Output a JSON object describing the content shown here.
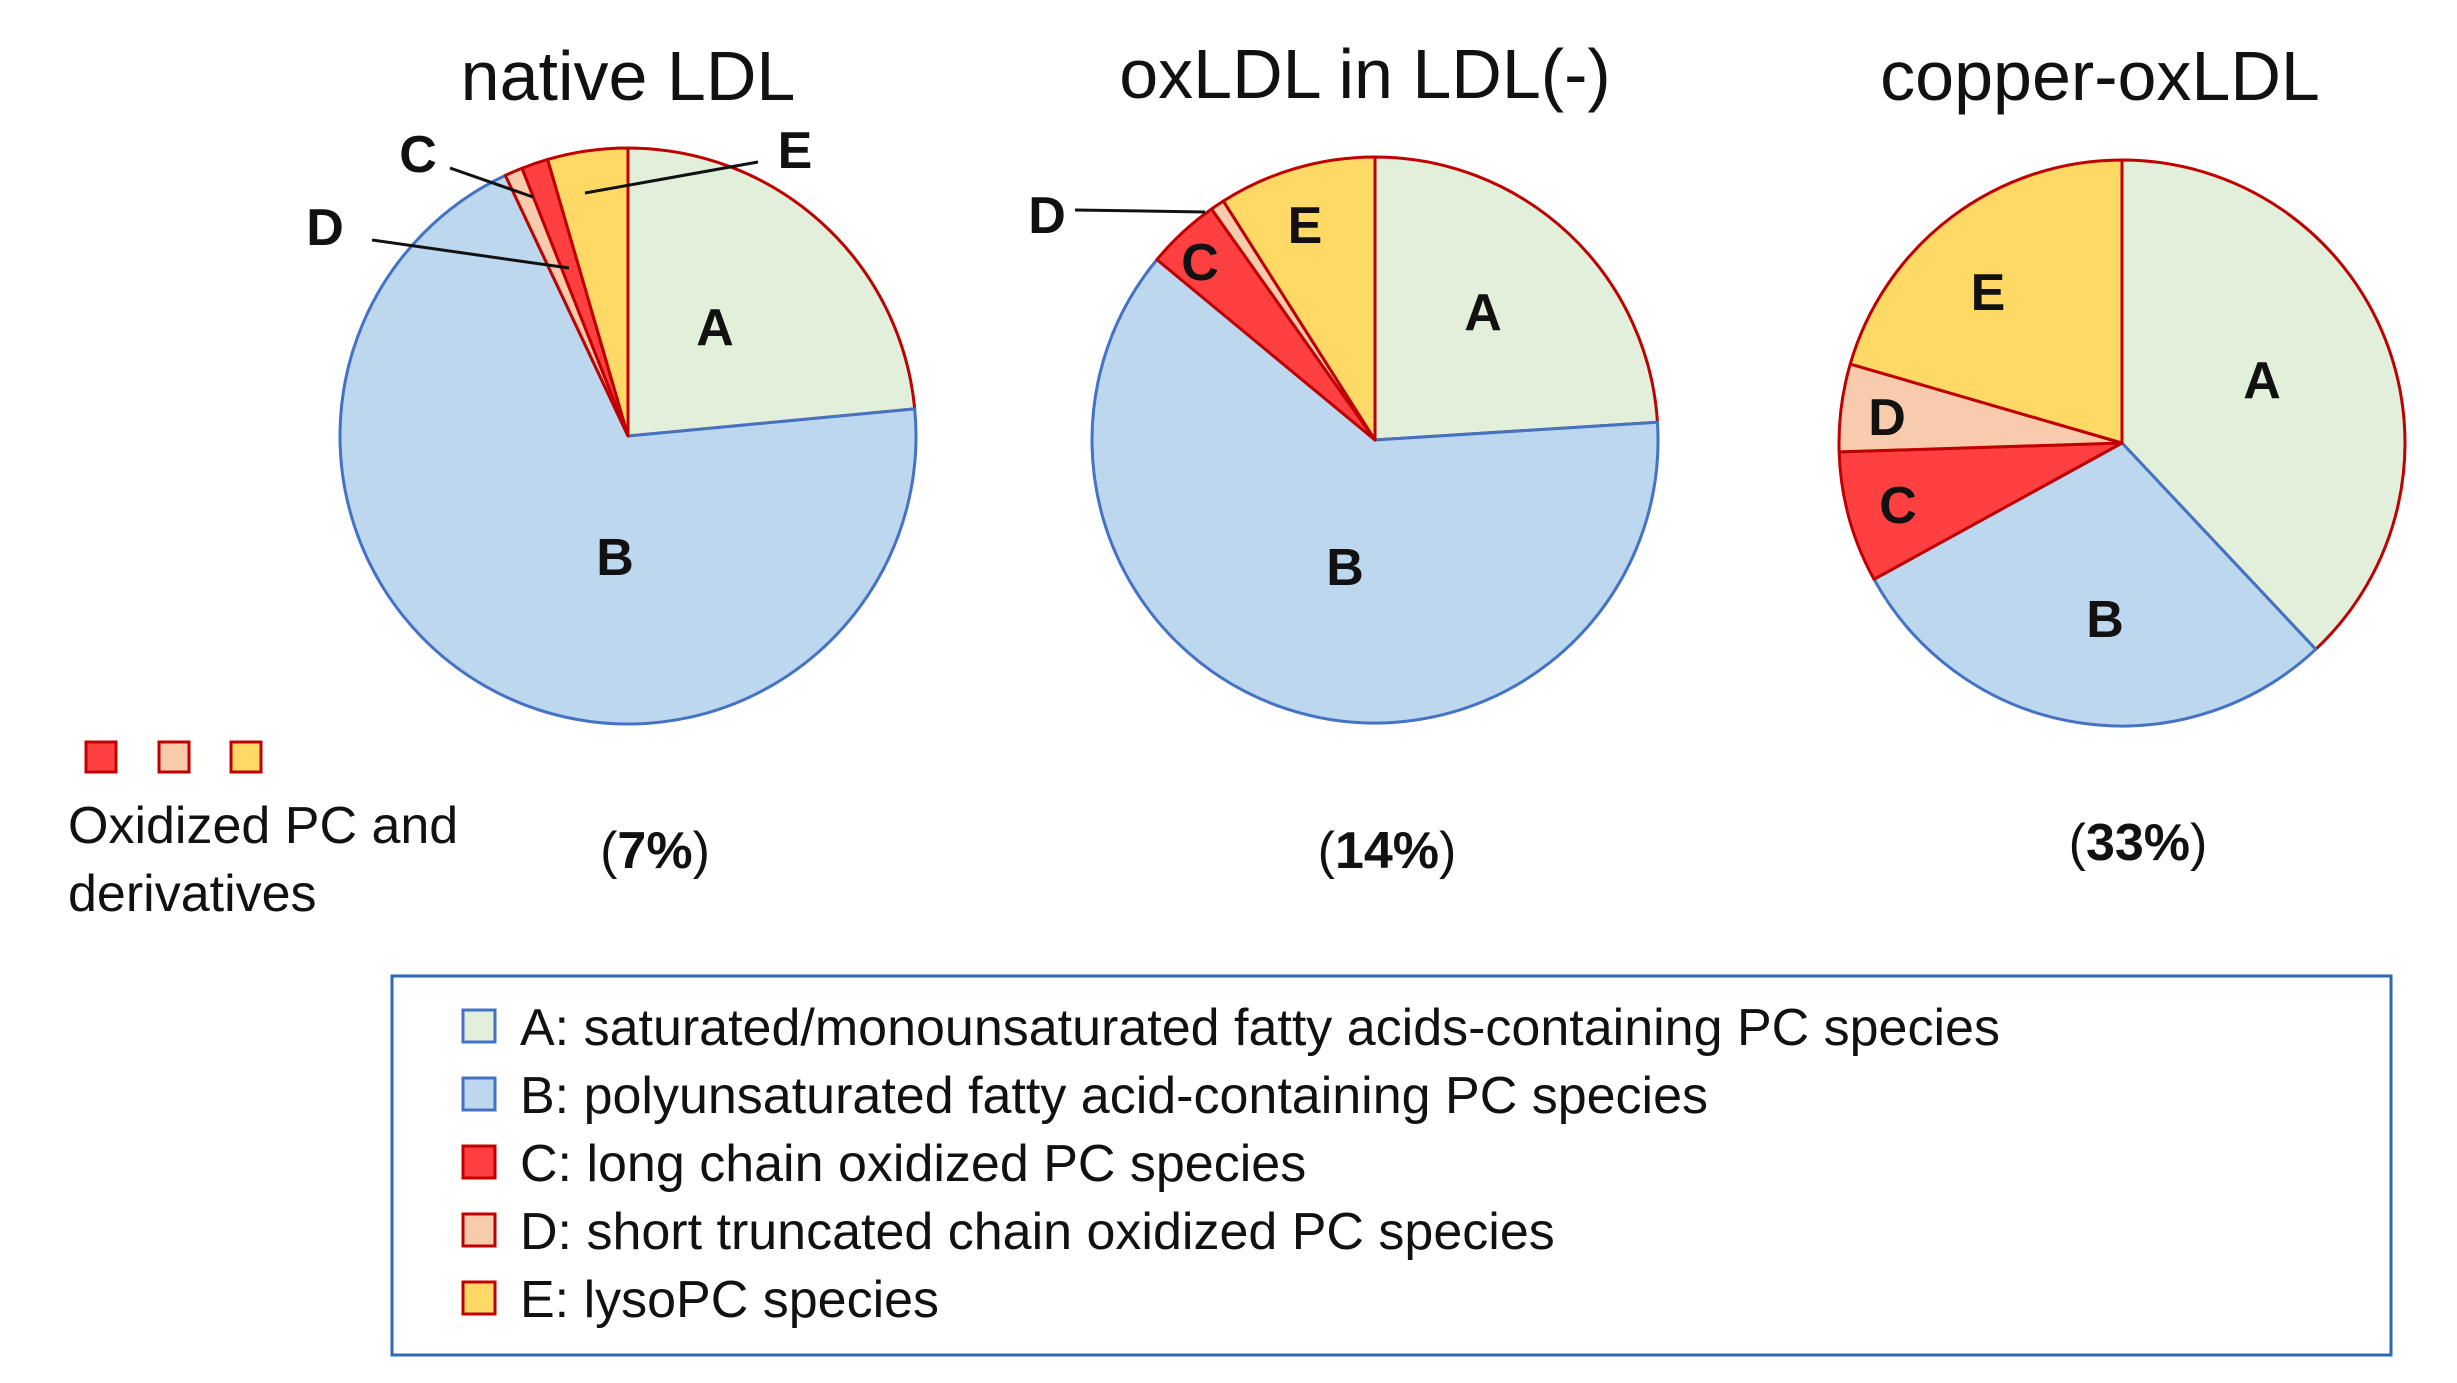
{
  "chart_data": [
    {
      "type": "pie",
      "title": "native LDL",
      "oxidized_percent_label": "7%",
      "slices": [
        {
          "label": "A",
          "value": 23.5
        },
        {
          "label": "B",
          "value": 69.5
        },
        {
          "label": "D",
          "value": 1.0
        },
        {
          "label": "C",
          "value": 1.5
        },
        {
          "label": "E",
          "value": 4.5
        }
      ]
    },
    {
      "type": "pie",
      "title": "oxLDL in LDL(-)",
      "oxidized_percent_label": "14%",
      "slices": [
        {
          "label": "A",
          "value": 24.0
        },
        {
          "label": "B",
          "value": 62.0
        },
        {
          "label": "C",
          "value": 4.2
        },
        {
          "label": "D",
          "value": 0.8
        },
        {
          "label": "E",
          "value": 9.0
        }
      ]
    },
    {
      "type": "pie",
      "title": "copper-oxLDL",
      "oxidized_percent_label": "33%",
      "slices": [
        {
          "label": "A",
          "value": 38.0
        },
        {
          "label": "B",
          "value": 29.0
        },
        {
          "label": "C",
          "value": 7.5
        },
        {
          "label": "D",
          "value": 5.0
        },
        {
          "label": "E",
          "value": 20.5
        }
      ]
    }
  ],
  "categories": {
    "A": {
      "fill": "#e2efda",
      "stroke": "#c00000"
    },
    "B": {
      "fill": "#bdd7ee",
      "stroke": "#4472c4"
    },
    "C": {
      "fill": "#ff4040",
      "stroke": "#c00000"
    },
    "D": {
      "fill": "#f8cbad",
      "stroke": "#c00000"
    },
    "E": {
      "fill": "#ffd966",
      "stroke": "#c00000"
    }
  },
  "oxidized_note": {
    "line1": "Oxidized PC and",
    "line2": "derivatives",
    "swatches": [
      "C",
      "D",
      "E"
    ]
  },
  "legend": {
    "items": [
      {
        "key": "A",
        "text": "A: saturated/monounsaturated fatty acids-containing PC species"
      },
      {
        "key": "B",
        "text": "B: polyunsaturated fatty acid-containing PC species"
      },
      {
        "key": "C",
        "text": "C: long chain oxidized PC species"
      },
      {
        "key": "D",
        "text": "D: short truncated chain oxidized PC species"
      },
      {
        "key": "E",
        "text": "E: lysoPC species"
      }
    ]
  },
  "paren_open": "(",
  "paren_close": ")"
}
